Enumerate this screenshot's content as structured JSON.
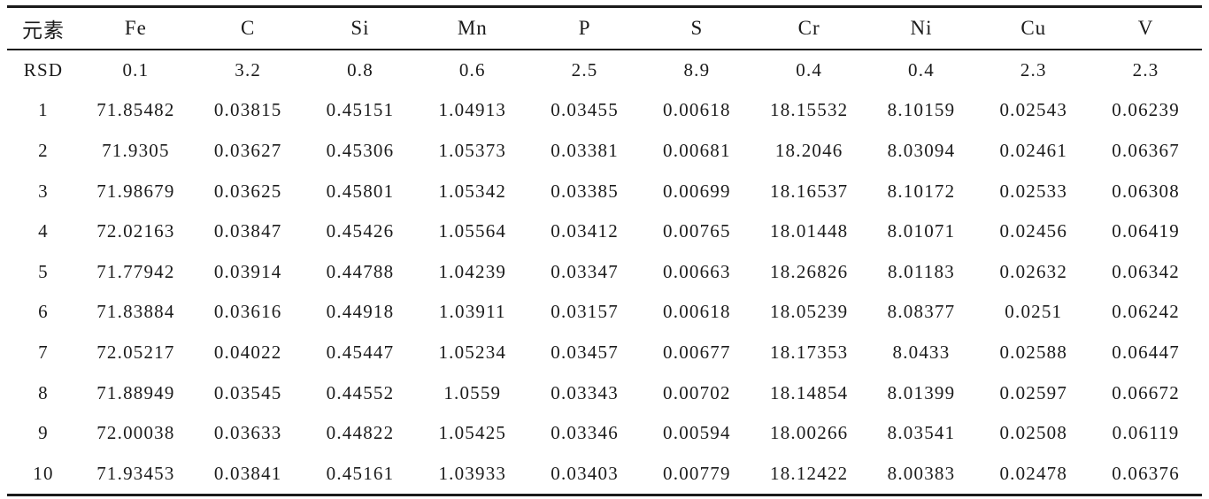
{
  "colors": {
    "background": "#ffffff",
    "text": "#1b1b1b",
    "rule": "#1a1a1a"
  },
  "chart_data": {
    "type": "table",
    "title": "",
    "corner_label": "元素",
    "columns": [
      "元素",
      "Fe",
      "C",
      "Si",
      "Mn",
      "P",
      "S",
      "Cr",
      "Ni",
      "Cu",
      "V"
    ],
    "rows": [
      [
        "RSD",
        "0.1",
        "3.2",
        "0.8",
        "0.6",
        "2.5",
        "8.9",
        "0.4",
        "0.4",
        "2.3",
        "2.3"
      ],
      [
        "1",
        "71.85482",
        "0.03815",
        "0.45151",
        "1.04913",
        "0.03455",
        "0.00618",
        "18.15532",
        "8.10159",
        "0.02543",
        "0.06239"
      ],
      [
        "2",
        "71.9305",
        "0.03627",
        "0.45306",
        "1.05373",
        "0.03381",
        "0.00681",
        "18.2046",
        "8.03094",
        "0.02461",
        "0.06367"
      ],
      [
        "3",
        "71.98679",
        "0.03625",
        "0.45801",
        "1.05342",
        "0.03385",
        "0.00699",
        "18.16537",
        "8.10172",
        "0.02533",
        "0.06308"
      ],
      [
        "4",
        "72.02163",
        "0.03847",
        "0.45426",
        "1.05564",
        "0.03412",
        "0.00765",
        "18.01448",
        "8.01071",
        "0.02456",
        "0.06419"
      ],
      [
        "5",
        "71.77942",
        "0.03914",
        "0.44788",
        "1.04239",
        "0.03347",
        "0.00663",
        "18.26826",
        "8.01183",
        "0.02632",
        "0.06342"
      ],
      [
        "6",
        "71.83884",
        "0.03616",
        "0.44918",
        "1.03911",
        "0.03157",
        "0.00618",
        "18.05239",
        "8.08377",
        "0.0251",
        "0.06242"
      ],
      [
        "7",
        "72.05217",
        "0.04022",
        "0.45447",
        "1.05234",
        "0.03457",
        "0.00677",
        "18.17353",
        "8.0433",
        "0.02588",
        "0.06447"
      ],
      [
        "8",
        "71.88949",
        "0.03545",
        "0.44552",
        "1.0559",
        "0.03343",
        "0.00702",
        "18.14854",
        "8.01399",
        "0.02597",
        "0.06672"
      ],
      [
        "9",
        "72.00038",
        "0.03633",
        "0.44822",
        "1.05425",
        "0.03346",
        "0.00594",
        "18.00266",
        "8.03541",
        "0.02508",
        "0.06119"
      ],
      [
        "10",
        "71.93453",
        "0.03841",
        "0.45161",
        "1.03933",
        "0.03403",
        "0.00779",
        "18.12422",
        "8.00383",
        "0.02478",
        "0.06376"
      ]
    ]
  }
}
